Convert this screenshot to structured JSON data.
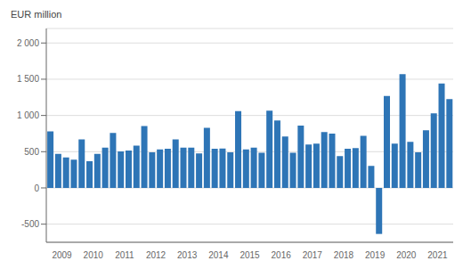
{
  "chart_data": {
    "type": "bar",
    "ylabel": "EUR million",
    "categories": [
      null,
      "2009",
      null,
      null,
      null,
      "2010",
      null,
      null,
      null,
      "2011",
      null,
      null,
      null,
      "2012",
      null,
      null,
      null,
      "2013",
      null,
      null,
      null,
      "2014",
      null,
      null,
      null,
      "2015",
      null,
      null,
      null,
      "2016",
      null,
      null,
      null,
      "2017",
      null,
      null,
      null,
      "2018",
      null,
      null,
      null,
      "2019",
      null,
      null,
      null,
      "2020",
      null,
      null,
      null,
      "2021",
      null,
      null
    ],
    "values": [
      780,
      470,
      420,
      390,
      670,
      370,
      470,
      555,
      760,
      505,
      515,
      585,
      855,
      490,
      530,
      540,
      670,
      555,
      555,
      475,
      830,
      540,
      545,
      490,
      1060,
      530,
      555,
      485,
      1065,
      930,
      710,
      485,
      860,
      600,
      610,
      770,
      750,
      440,
      540,
      550,
      720,
      305,
      -635,
      1270,
      610,
      1570,
      635,
      490,
      795,
      1030,
      1440,
      1225
    ],
    "color": "#2e75b6",
    "ylim": [
      -750,
      2200
    ],
    "yticks": [
      -500,
      0,
      500,
      {
        "value": 1000,
        "label": "1 000"
      },
      {
        "value": 1500,
        "label": "1 500"
      },
      {
        "value": 2000,
        "label": "2 000"
      }
    ],
    "grid": true
  }
}
